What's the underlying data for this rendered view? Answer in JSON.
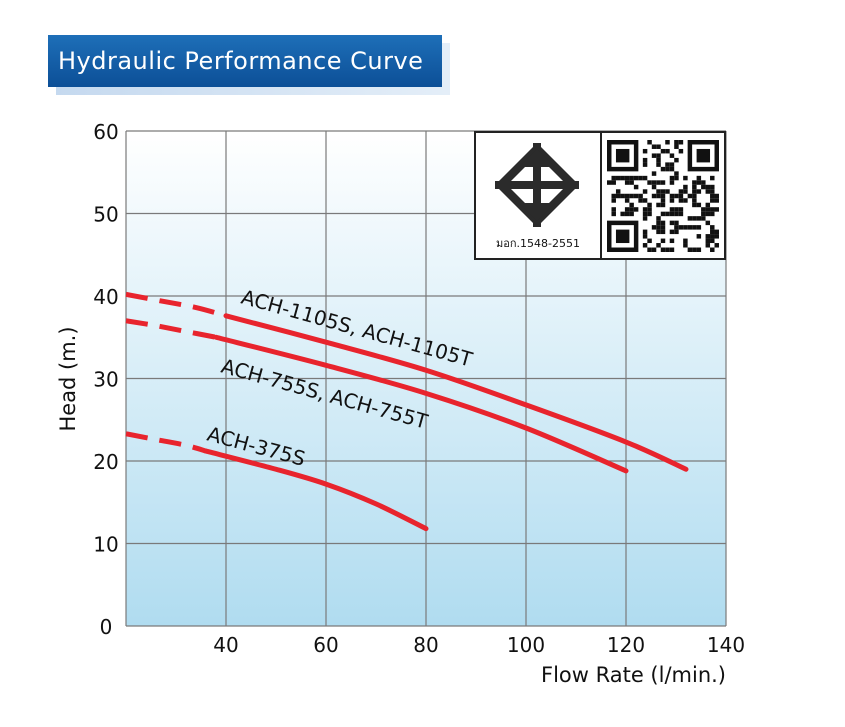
{
  "title": "Hydraulic Performance Curve",
  "certification": {
    "standard_label": "มอก.1548-2551",
    "qr_icon": "qr-code-icon",
    "mark_icon": "tis-standard-mark-icon"
  },
  "colors": {
    "curve": "#e8242d",
    "grid": "#7a7a7a",
    "bg_top": "#ffffff",
    "bg_bottom": "#b0dcf0",
    "title_bg": "#1565b0"
  },
  "chart_data": {
    "type": "line",
    "title": "Hydraulic Performance Curve",
    "xlabel": "Flow Rate (l/min.)",
    "ylabel": "Head (m.)",
    "xlim": [
      20,
      140
    ],
    "ylim": [
      0,
      60
    ],
    "xticks": [
      40,
      60,
      80,
      100,
      120,
      140
    ],
    "yticks": [
      0,
      10,
      20,
      30,
      40,
      50,
      60
    ],
    "grid": true,
    "series": [
      {
        "name": "ACH-1105S, ACH-1105T",
        "label": "ACH-1105S, ACH-1105T",
        "dashed": {
          "x": [
            20,
            27,
            34,
            40
          ],
          "y": [
            40.2,
            39.4,
            38.6,
            37.6
          ]
        },
        "solid": {
          "x": [
            40,
            60,
            80,
            100,
            120,
            132
          ],
          "y": [
            37.6,
            34.4,
            31.0,
            26.8,
            22.3,
            19.0
          ]
        }
      },
      {
        "name": "ACH-755S, ACH-755T",
        "label": "ACH-755S, ACH-755T",
        "dashed": {
          "x": [
            20,
            26,
            32,
            38
          ],
          "y": [
            37.0,
            36.4,
            35.7,
            35.0
          ]
        },
        "solid": {
          "x": [
            38,
            60,
            80,
            100,
            120
          ],
          "y": [
            35.0,
            31.6,
            28.2,
            24.0,
            18.8
          ]
        }
      },
      {
        "name": "ACH-375S",
        "label": "ACH-375S",
        "dashed": {
          "x": [
            20,
            26,
            32,
            36
          ],
          "y": [
            23.3,
            22.6,
            21.9,
            21.2
          ]
        },
        "solid": {
          "x": [
            36,
            50,
            60,
            70,
            80
          ],
          "y": [
            21.2,
            19.0,
            17.2,
            14.8,
            11.8
          ]
        }
      }
    ]
  }
}
